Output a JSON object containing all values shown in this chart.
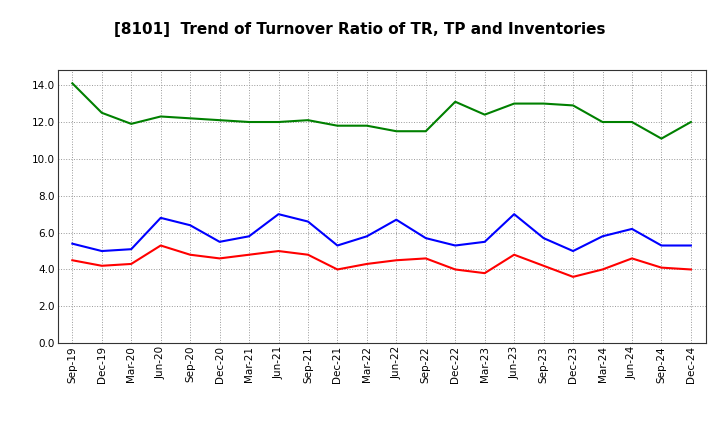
{
  "title": "[8101]  Trend of Turnover Ratio of TR, TP and Inventories",
  "x_labels": [
    "Sep-19",
    "Dec-19",
    "Mar-20",
    "Jun-20",
    "Sep-20",
    "Dec-20",
    "Mar-21",
    "Jun-21",
    "Sep-21",
    "Dec-21",
    "Mar-22",
    "Jun-22",
    "Sep-22",
    "Dec-22",
    "Mar-23",
    "Jun-23",
    "Sep-23",
    "Dec-23",
    "Mar-24",
    "Jun-24",
    "Sep-24",
    "Dec-24"
  ],
  "trade_receivables": [
    4.5,
    4.2,
    4.3,
    5.3,
    4.8,
    4.6,
    4.8,
    5.0,
    4.8,
    4.0,
    4.3,
    4.5,
    4.6,
    4.0,
    3.8,
    4.8,
    4.2,
    3.6,
    4.0,
    4.6,
    4.1,
    4.0
  ],
  "trade_payables": [
    5.4,
    5.0,
    5.1,
    6.8,
    6.4,
    5.5,
    5.8,
    7.0,
    6.6,
    5.3,
    5.8,
    6.7,
    5.7,
    5.3,
    5.5,
    7.0,
    5.7,
    5.0,
    5.8,
    6.2,
    5.3,
    5.3
  ],
  "inventories": [
    14.1,
    12.5,
    11.9,
    12.3,
    12.2,
    12.1,
    12.0,
    12.0,
    12.1,
    11.8,
    11.8,
    11.5,
    11.5,
    13.1,
    12.4,
    13.0,
    13.0,
    12.9,
    12.0,
    12.0,
    11.1,
    12.0
  ],
  "tr_color": "#ff0000",
  "tp_color": "#0000ff",
  "inv_color": "#008000",
  "ylim": [
    0,
    14.8
  ],
  "yticks": [
    0.0,
    2.0,
    4.0,
    6.0,
    8.0,
    10.0,
    12.0,
    14.0
  ],
  "background_color": "#ffffff",
  "grid_color": "#999999",
  "title_fontsize": 11,
  "legend_fontsize": 9,
  "tick_fontsize": 7.5
}
